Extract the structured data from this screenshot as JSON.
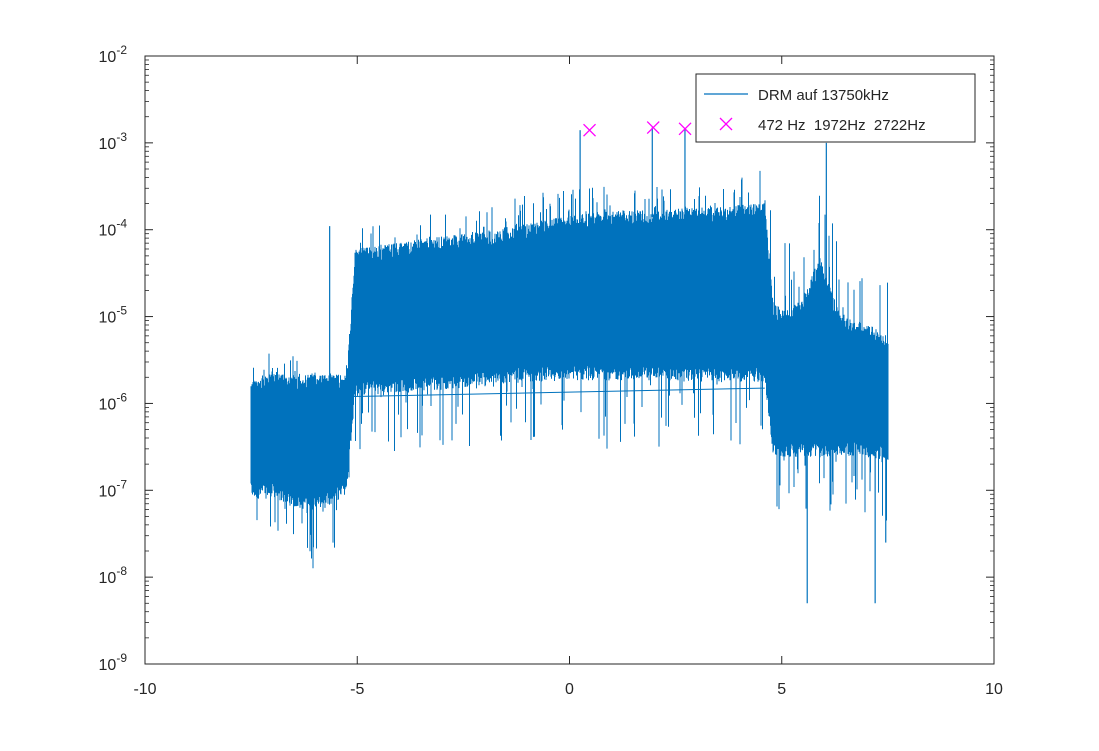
{
  "chart_data": {
    "type": "line",
    "title": "",
    "xlabel": "",
    "ylabel": "",
    "x_scale": "linear",
    "y_scale": "log",
    "xlim": [
      -10,
      10
    ],
    "ylim": [
      1e-09,
      0.01
    ],
    "grid": false,
    "box": true,
    "x_ticks": [
      {
        "value": -10,
        "label": "-10"
      },
      {
        "value": -5,
        "label": "-5"
      },
      {
        "value": 0,
        "label": "0"
      },
      {
        "value": 5,
        "label": "5"
      },
      {
        "value": 10,
        "label": "10"
      }
    ],
    "y_ticks": [
      {
        "value": 1e-09,
        "base": "10",
        "exp": "-9"
      },
      {
        "value": 1e-08,
        "base": "10",
        "exp": "-8"
      },
      {
        "value": 1e-07,
        "base": "10",
        "exp": "-7"
      },
      {
        "value": 1e-06,
        "base": "10",
        "exp": "-6"
      },
      {
        "value": 1e-05,
        "base": "10",
        "exp": "-5"
      },
      {
        "value": 0.0001,
        "base": "10",
        "exp": "-4"
      },
      {
        "value": 0.001,
        "base": "10",
        "exp": "-3"
      },
      {
        "value": 0.01,
        "base": "10",
        "exp": "-2"
      }
    ],
    "legend_position": "top-right",
    "series": [
      {
        "name": "DRM auf 13750kHz",
        "color": "#0072BD",
        "kind": "line",
        "envelope": {
          "x": [
            -7.5,
            -7.0,
            -6.5,
            -6.0,
            -5.7,
            -5.4,
            -5.25,
            -5.05,
            -4.5,
            -4.0,
            -3.0,
            -2.0,
            -1.0,
            0.0,
            1.0,
            2.0,
            3.0,
            4.0,
            4.6,
            4.8,
            5.2,
            5.5,
            5.9,
            6.2,
            6.5,
            7.0,
            7.5
          ],
          "upper": [
            3e-06,
            4e-06,
            3.5e-06,
            3e-06,
            3e-06,
            2.5e-06,
            3e-06,
            0.00011,
            0.00012,
            0.00013,
            0.00016,
            0.0002,
            0.00026,
            0.0003,
            0.00032,
            0.00031,
            0.00032,
            0.0004,
            0.0005,
            0.00016,
            0.0001,
            0.00015,
            0.00025,
            0.00013,
            3e-05,
            3e-05,
            2.5e-05
          ],
          "lower": [
            3e-08,
            2e-08,
            1.5e-08,
            1.2e-08,
            1.5e-08,
            2e-08,
            4e-08,
            2e-07,
            2.5e-07,
            2.5e-07,
            3e-07,
            3e-07,
            3e-07,
            3e-07,
            3e-07,
            3e-07,
            3e-07,
            3e-07,
            3e-07,
            6e-08,
            5e-08,
            6e-08,
            5e-08,
            5e-08,
            6e-08,
            5e-08,
            4e-08
          ],
          "core_upper": [
            1.5e-06,
            2e-06,
            1.8e-06,
            1.8e-06,
            1.8e-06,
            1.8e-06,
            1.8e-06,
            5e-05,
            5.5e-05,
            6e-05,
            7e-05,
            8e-05,
            0.0001,
            0.00012,
            0.00014,
            0.00014,
            0.00015,
            0.00016,
            0.00017,
            1.2e-05,
            1e-05,
            1.5e-05,
            4e-05,
            1.5e-05,
            8e-06,
            7e-06,
            5e-06
          ],
          "core_lower": [
            1e-07,
            1e-07,
            8e-08,
            7e-08,
            8e-08,
            1e-07,
            1.3e-07,
            1.5e-06,
            1.6e-06,
            1.7e-06,
            1.8e-06,
            2e-06,
            2.2e-06,
            2.3e-06,
            2.3e-06,
            2.3e-06,
            2.2e-06,
            2.2e-06,
            2.2e-06,
            3e-07,
            3e-07,
            3e-07,
            3e-07,
            3e-07,
            3e-07,
            3e-07,
            2.5e-07
          ]
        },
        "spikes": [
          {
            "x": -5.65,
            "y": 0.00011
          },
          {
            "x": 0.25,
            "y": 0.0014
          },
          {
            "x": 1.95,
            "y": 0.0015
          },
          {
            "x": 2.72,
            "y": 0.00145
          },
          {
            "x": 6.05,
            "y": 0.001
          },
          {
            "x": 5.6,
            "y": 5e-09
          },
          {
            "x": 7.2,
            "y": 5e-09
          },
          {
            "x": 7.45,
            "y": 2.5e-08
          }
        ],
        "baseline": {
          "x": [
            -5.1,
            4.6
          ],
          "y": [
            1.2e-06,
            1.5e-06
          ]
        }
      },
      {
        "name": "472 Hz  1972Hz  2722Hz",
        "color": "#FF00FF",
        "kind": "marker",
        "marker": "x",
        "points": [
          {
            "x": 0.472,
            "y": 0.0014
          },
          {
            "x": 1.972,
            "y": 0.0015
          },
          {
            "x": 2.722,
            "y": 0.00145
          }
        ]
      }
    ]
  }
}
